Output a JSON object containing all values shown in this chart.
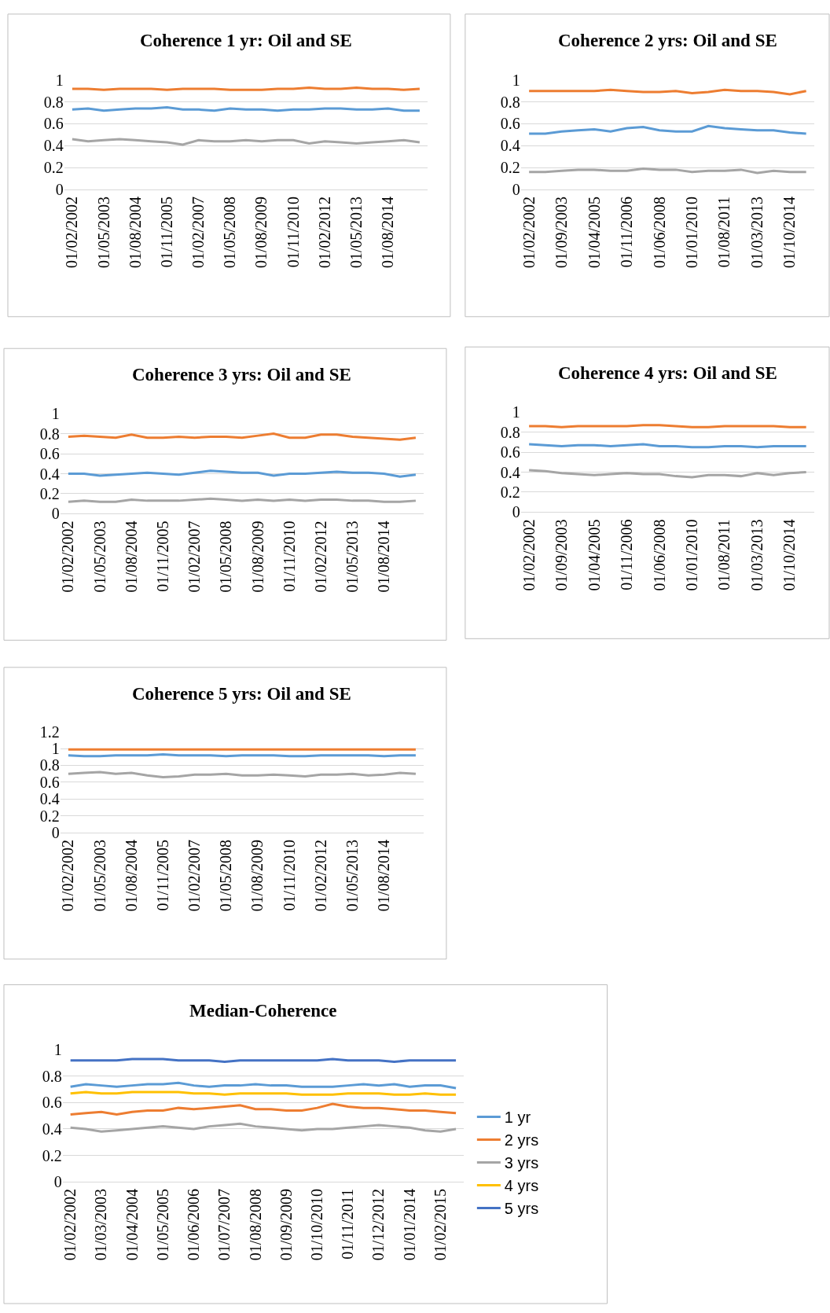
{
  "chart_data": [
    {
      "type": "line",
      "title": "Coherence 1 yr: Oil and SE",
      "categories": [
        "01/02/2002",
        null,
        "01/05/2003",
        null,
        "01/08/2004",
        null,
        "01/11/2005",
        null,
        "01/02/2007",
        null,
        "01/05/2008",
        null,
        "01/08/2009",
        null,
        "01/11/2010",
        null,
        "01/02/2012",
        null,
        "01/05/2013",
        null,
        "01/08/2014",
        null,
        null
      ],
      "ylim": [
        0,
        1
      ],
      "yticks": [
        0,
        0.2,
        0.4,
        0.6,
        0.8,
        1
      ],
      "grid": "y",
      "legend": false,
      "marker": "none",
      "line_style": "solid",
      "series": [
        {
          "color": "#ed7d31",
          "values": [
            0.92,
            0.92,
            0.91,
            0.92,
            0.92,
            0.92,
            0.91,
            0.92,
            0.92,
            0.92,
            0.91,
            0.91,
            0.91,
            0.92,
            0.92,
            0.93,
            0.92,
            0.92,
            0.93,
            0.92,
            0.92,
            0.91,
            0.92
          ]
        },
        {
          "color": "#5b9bd5",
          "values": [
            0.73,
            0.74,
            0.72,
            0.73,
            0.74,
            0.74,
            0.75,
            0.73,
            0.73,
            0.72,
            0.74,
            0.73,
            0.73,
            0.72,
            0.73,
            0.73,
            0.74,
            0.74,
            0.73,
            0.73,
            0.74,
            0.72,
            0.72
          ]
        },
        {
          "color": "#a5a5a5",
          "values": [
            0.46,
            0.44,
            0.45,
            0.46,
            0.45,
            0.44,
            0.43,
            0.41,
            0.45,
            0.44,
            0.44,
            0.45,
            0.44,
            0.45,
            0.45,
            0.42,
            0.44,
            0.43,
            0.42,
            0.43,
            0.44,
            0.45,
            0.43
          ]
        }
      ]
    },
    {
      "type": "line",
      "title": "Coherence 2 yrs: Oil and SE",
      "categories": [
        "01/02/2002",
        null,
        "01/09/2003",
        null,
        "01/04/2005",
        null,
        "01/11/2006",
        null,
        "01/06/2008",
        null,
        "01/01/2010",
        null,
        "01/08/2011",
        null,
        "01/03/2013",
        null,
        "01/10/2014",
        null
      ],
      "ylim": [
        0,
        1
      ],
      "yticks": [
        0,
        0.2,
        0.4,
        0.6,
        0.8,
        1
      ],
      "grid": "y",
      "legend": false,
      "marker": "none",
      "line_style": "solid",
      "series": [
        {
          "color": "#ed7d31",
          "values": [
            0.9,
            0.9,
            0.9,
            0.9,
            0.9,
            0.91,
            0.9,
            0.89,
            0.89,
            0.9,
            0.88,
            0.89,
            0.91,
            0.9,
            0.9,
            0.89,
            0.87,
            0.9
          ]
        },
        {
          "color": "#5b9bd5",
          "values": [
            0.51,
            0.51,
            0.53,
            0.54,
            0.55,
            0.53,
            0.56,
            0.57,
            0.54,
            0.53,
            0.53,
            0.58,
            0.56,
            0.55,
            0.54,
            0.54,
            0.52,
            0.51
          ]
        },
        {
          "color": "#a5a5a5",
          "values": [
            0.16,
            0.16,
            0.17,
            0.18,
            0.18,
            0.17,
            0.17,
            0.19,
            0.18,
            0.18,
            0.16,
            0.17,
            0.17,
            0.18,
            0.15,
            0.17,
            0.16,
            0.16
          ]
        }
      ]
    },
    {
      "type": "line",
      "title": "Coherence 3 yrs: Oil and SE",
      "categories": [
        "01/02/2002",
        null,
        "01/05/2003",
        null,
        "01/08/2004",
        null,
        "01/11/2005",
        null,
        "01/02/2007",
        null,
        "01/05/2008",
        null,
        "01/08/2009",
        null,
        "01/11/2010",
        null,
        "01/02/2012",
        null,
        "01/05/2013",
        null,
        "01/08/2014",
        null,
        null
      ],
      "ylim": [
        0,
        1
      ],
      "yticks": [
        0,
        0.2,
        0.4,
        0.6,
        0.8,
        1
      ],
      "grid": "y",
      "legend": false,
      "marker": "none",
      "line_style": "solid",
      "series": [
        {
          "color": "#ed7d31",
          "values": [
            0.77,
            0.78,
            0.77,
            0.76,
            0.79,
            0.76,
            0.76,
            0.77,
            0.76,
            0.77,
            0.77,
            0.76,
            0.78,
            0.8,
            0.76,
            0.76,
            0.79,
            0.79,
            0.77,
            0.76,
            0.75,
            0.74,
            0.76
          ]
        },
        {
          "color": "#5b9bd5",
          "values": [
            0.4,
            0.4,
            0.38,
            0.39,
            0.4,
            0.41,
            0.4,
            0.39,
            0.41,
            0.43,
            0.42,
            0.41,
            0.41,
            0.38,
            0.4,
            0.4,
            0.41,
            0.42,
            0.41,
            0.41,
            0.4,
            0.37,
            0.39
          ]
        },
        {
          "color": "#a5a5a5",
          "values": [
            0.12,
            0.13,
            0.12,
            0.12,
            0.14,
            0.13,
            0.13,
            0.13,
            0.14,
            0.15,
            0.14,
            0.13,
            0.14,
            0.13,
            0.14,
            0.13,
            0.14,
            0.14,
            0.13,
            0.13,
            0.12,
            0.12,
            0.13
          ]
        }
      ]
    },
    {
      "type": "line",
      "title": "Coherence 4 yrs: Oil and SE",
      "categories": [
        "01/02/2002",
        null,
        "01/09/2003",
        null,
        "01/04/2005",
        null,
        "01/11/2006",
        null,
        "01/06/2008",
        null,
        "01/01/2010",
        null,
        "01/08/2011",
        null,
        "01/03/2013",
        null,
        "01/10/2014",
        null
      ],
      "ylim": [
        0,
        1
      ],
      "yticks": [
        0,
        0.2,
        0.4,
        0.6,
        0.8,
        1
      ],
      "grid": "y",
      "legend": false,
      "marker": "none",
      "line_style": "solid",
      "series": [
        {
          "color": "#ed7d31",
          "values": [
            0.86,
            0.86,
            0.85,
            0.86,
            0.86,
            0.86,
            0.86,
            0.87,
            0.87,
            0.86,
            0.85,
            0.85,
            0.86,
            0.86,
            0.86,
            0.86,
            0.85,
            0.85
          ]
        },
        {
          "color": "#5b9bd5",
          "values": [
            0.68,
            0.67,
            0.66,
            0.67,
            0.67,
            0.66,
            0.67,
            0.68,
            0.66,
            0.66,
            0.65,
            0.65,
            0.66,
            0.66,
            0.65,
            0.66,
            0.66,
            0.66
          ]
        },
        {
          "color": "#a5a5a5",
          "values": [
            0.42,
            0.41,
            0.39,
            0.38,
            0.37,
            0.38,
            0.39,
            0.38,
            0.38,
            0.36,
            0.35,
            0.37,
            0.37,
            0.36,
            0.39,
            0.37,
            0.39,
            0.4
          ]
        }
      ]
    },
    {
      "type": "line",
      "title": "Coherence 5 yrs: Oil and SE",
      "categories": [
        "01/02/2002",
        null,
        "01/05/2003",
        null,
        "01/08/2004",
        null,
        "01/11/2005",
        null,
        "01/02/2007",
        null,
        "01/05/2008",
        null,
        "01/08/2009",
        null,
        "01/11/2010",
        null,
        "01/02/2012",
        null,
        "01/05/2013",
        null,
        "01/08/2014",
        null,
        null
      ],
      "ylim": [
        0,
        1.2
      ],
      "yticks": [
        0,
        0.2,
        0.4,
        0.6,
        0.8,
        1,
        1.2
      ],
      "grid": "y",
      "legend": false,
      "marker": "none",
      "line_style": "solid",
      "series": [
        {
          "color": "#ed7d31",
          "values": [
            0.99,
            0.99,
            0.99,
            0.99,
            0.99,
            0.99,
            0.99,
            0.99,
            0.99,
            0.99,
            0.99,
            0.99,
            0.99,
            0.99,
            0.99,
            0.99,
            0.99,
            0.99,
            0.99,
            0.99,
            0.99,
            0.99,
            0.99
          ]
        },
        {
          "color": "#5b9bd5",
          "values": [
            0.92,
            0.91,
            0.91,
            0.92,
            0.92,
            0.92,
            0.93,
            0.92,
            0.92,
            0.92,
            0.91,
            0.92,
            0.92,
            0.92,
            0.91,
            0.91,
            0.92,
            0.92,
            0.92,
            0.92,
            0.91,
            0.92,
            0.92
          ]
        },
        {
          "color": "#a5a5a5",
          "values": [
            0.7,
            0.71,
            0.72,
            0.7,
            0.71,
            0.68,
            0.66,
            0.67,
            0.69,
            0.69,
            0.7,
            0.68,
            0.68,
            0.69,
            0.68,
            0.67,
            0.69,
            0.69,
            0.7,
            0.68,
            0.69,
            0.71,
            0.7
          ]
        }
      ]
    },
    {
      "type": "line",
      "title": "Median-Coherence",
      "categories": [
        "01/02/2002",
        null,
        "01/03/2003",
        null,
        "01/04/2004",
        null,
        "01/05/2005",
        null,
        "01/06/2006",
        null,
        "01/07/2007",
        null,
        "01/08/2008",
        null,
        "01/09/2009",
        null,
        "01/10/2010",
        null,
        "01/11/2011",
        null,
        "01/12/2012",
        null,
        "01/01/2014",
        null,
        "01/02/2015",
        null
      ],
      "ylim": [
        0,
        1
      ],
      "yticks": [
        0,
        0.2,
        0.4,
        0.6,
        0.8,
        1
      ],
      "grid": "y",
      "legend": "right",
      "marker": "none",
      "line_style": "solid",
      "series": [
        {
          "name": "1 yr",
          "color": "#5b9bd5",
          "values": [
            0.72,
            0.74,
            0.73,
            0.72,
            0.73,
            0.74,
            0.74,
            0.75,
            0.73,
            0.72,
            0.73,
            0.73,
            0.74,
            0.73,
            0.73,
            0.72,
            0.72,
            0.72,
            0.73,
            0.74,
            0.73,
            0.74,
            0.72,
            0.73,
            0.73,
            0.71
          ]
        },
        {
          "name": "2 yrs",
          "color": "#ed7d31",
          "values": [
            0.51,
            0.52,
            0.53,
            0.51,
            0.53,
            0.54,
            0.54,
            0.56,
            0.55,
            0.56,
            0.57,
            0.58,
            0.55,
            0.55,
            0.54,
            0.54,
            0.56,
            0.59,
            0.57,
            0.56,
            0.56,
            0.55,
            0.54,
            0.54,
            0.53,
            0.52
          ]
        },
        {
          "name": "3 yrs",
          "color": "#a5a5a5",
          "values": [
            0.41,
            0.4,
            0.38,
            0.39,
            0.4,
            0.41,
            0.42,
            0.41,
            0.4,
            0.42,
            0.43,
            0.44,
            0.42,
            0.41,
            0.4,
            0.39,
            0.4,
            0.4,
            0.41,
            0.42,
            0.43,
            0.42,
            0.41,
            0.39,
            0.38,
            0.4
          ]
        },
        {
          "name": "4 yrs",
          "color": "#ffc000",
          "values": [
            0.67,
            0.68,
            0.67,
            0.67,
            0.68,
            0.68,
            0.68,
            0.68,
            0.67,
            0.67,
            0.66,
            0.67,
            0.67,
            0.67,
            0.67,
            0.66,
            0.66,
            0.66,
            0.67,
            0.67,
            0.67,
            0.66,
            0.66,
            0.67,
            0.66,
            0.66
          ]
        },
        {
          "name": "5 yrs",
          "color": "#4472c4",
          "values": [
            0.92,
            0.92,
            0.92,
            0.92,
            0.93,
            0.93,
            0.93,
            0.92,
            0.92,
            0.92,
            0.91,
            0.92,
            0.92,
            0.92,
            0.92,
            0.92,
            0.92,
            0.93,
            0.92,
            0.92,
            0.92,
            0.91,
            0.92,
            0.92,
            0.92,
            0.92
          ]
        }
      ]
    }
  ]
}
